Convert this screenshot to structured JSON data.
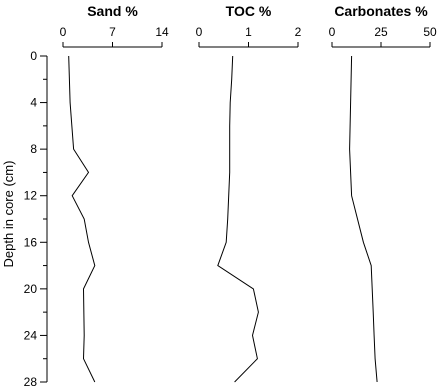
{
  "chart_data": {
    "type": "line",
    "ylabel": "Depth in core (cm)",
    "ylim": [
      0,
      28
    ],
    "y_ticks": [
      0,
      4,
      8,
      12,
      16,
      20,
      24,
      28
    ],
    "y_tick_labels": [
      "0",
      "4",
      "8",
      "12",
      "16",
      "20",
      "24",
      "28"
    ],
    "y_minor_ticks": [
      2,
      6,
      10,
      14,
      18,
      22,
      26
    ],
    "y_inverted": true,
    "panels": [
      {
        "title": "Sand %",
        "xlim": [
          0,
          14
        ],
        "x_ticks": [
          0,
          7,
          14
        ],
        "x_tick_labels": [
          "0",
          "7",
          "14"
        ],
        "series": [
          {
            "depth": [
              0,
              4,
              8,
              10,
              12,
              14,
              16,
              18,
              20,
              24,
              26,
              28
            ],
            "values": [
              0.8,
              1.0,
              1.5,
              3.6,
              1.3,
              3.0,
              3.6,
              4.5,
              2.9,
              3.0,
              2.9,
              4.5
            ]
          }
        ]
      },
      {
        "title": "TOC %",
        "xlim": [
          0,
          2
        ],
        "x_ticks": [
          0,
          1,
          2
        ],
        "x_tick_labels": [
          "0",
          "1",
          "2"
        ],
        "series": [
          {
            "depth": [
              0,
              2,
              4,
              6,
              8,
              10,
              12,
              14,
              16,
              18,
              20,
              22,
              24,
              26,
              28
            ],
            "values": [
              0.68,
              0.66,
              0.63,
              0.62,
              0.62,
              0.62,
              0.6,
              0.58,
              0.55,
              0.38,
              1.1,
              1.2,
              1.08,
              1.18,
              0.72
            ]
          }
        ]
      },
      {
        "title": "Carbonates %",
        "xlim": [
          0,
          50
        ],
        "x_ticks": [
          0,
          25,
          50
        ],
        "x_tick_labels": [
          "0",
          "25",
          "50"
        ],
        "series": [
          {
            "depth": [
              0,
              4,
              8,
              12,
              14,
              16,
              18,
              20,
              22,
              24,
              26,
              28
            ],
            "values": [
              10,
              9.5,
              9,
              10,
              13,
              16,
              20,
              20.5,
              21,
              21.5,
              22,
              23
            ]
          }
        ]
      }
    ]
  }
}
